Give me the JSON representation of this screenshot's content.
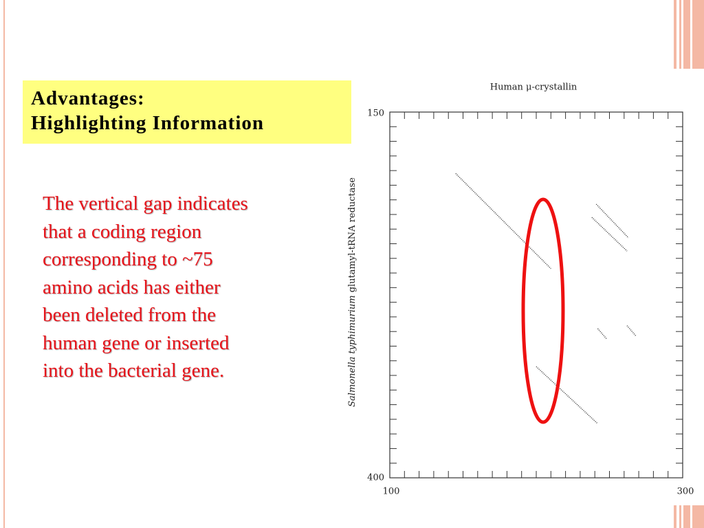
{
  "header": {
    "title_lines": [
      "Advantages:",
      "Highlighting Information"
    ]
  },
  "body": {
    "lines": [
      "The vertical gap indicates",
      "that a coding region",
      "corresponding to ~75",
      "amino acids has either",
      "been deleted from the",
      "human gene or inserted",
      "into the bacterial gene."
    ]
  },
  "chart_data": {
    "type": "dotplot",
    "xlabel": "Human μ-crystallin",
    "ylabel_italic": "Salmonella typhimurium",
    "ylabel": "glutamyl-tRNA reductase",
    "xlim": [
      100,
      300
    ],
    "ylim": [
      150,
      400
    ],
    "xticks": [
      100,
      300
    ],
    "yticks": [
      150,
      400
    ],
    "xticks_minor": [
      110,
      120,
      130,
      140,
      150,
      160,
      170,
      180,
      190,
      200,
      210,
      220,
      230,
      240,
      250,
      260,
      270,
      280,
      290
    ],
    "yticks_minor": [
      160,
      170,
      180,
      190,
      200,
      210,
      220,
      230,
      240,
      250,
      260,
      270,
      280,
      290,
      300,
      310,
      320,
      330,
      340,
      350,
      360,
      370,
      380,
      390
    ],
    "segments": [
      {
        "x": [
          145,
          210
        ],
        "y": [
          192,
          257
        ]
      },
      {
        "x": [
          200,
          242
        ],
        "y": [
          324,
          363
        ]
      },
      {
        "x": [
          241,
          263
        ],
        "y": [
          213,
          236
        ]
      },
      {
        "x": [
          238,
          262
        ],
        "y": [
          222,
          245
        ]
      },
      {
        "x": [
          242,
          248
        ],
        "y": [
          298,
          305
        ]
      },
      {
        "x": [
          262,
          268
        ],
        "y": [
          296,
          303
        ]
      }
    ],
    "color": "#333333"
  }
}
